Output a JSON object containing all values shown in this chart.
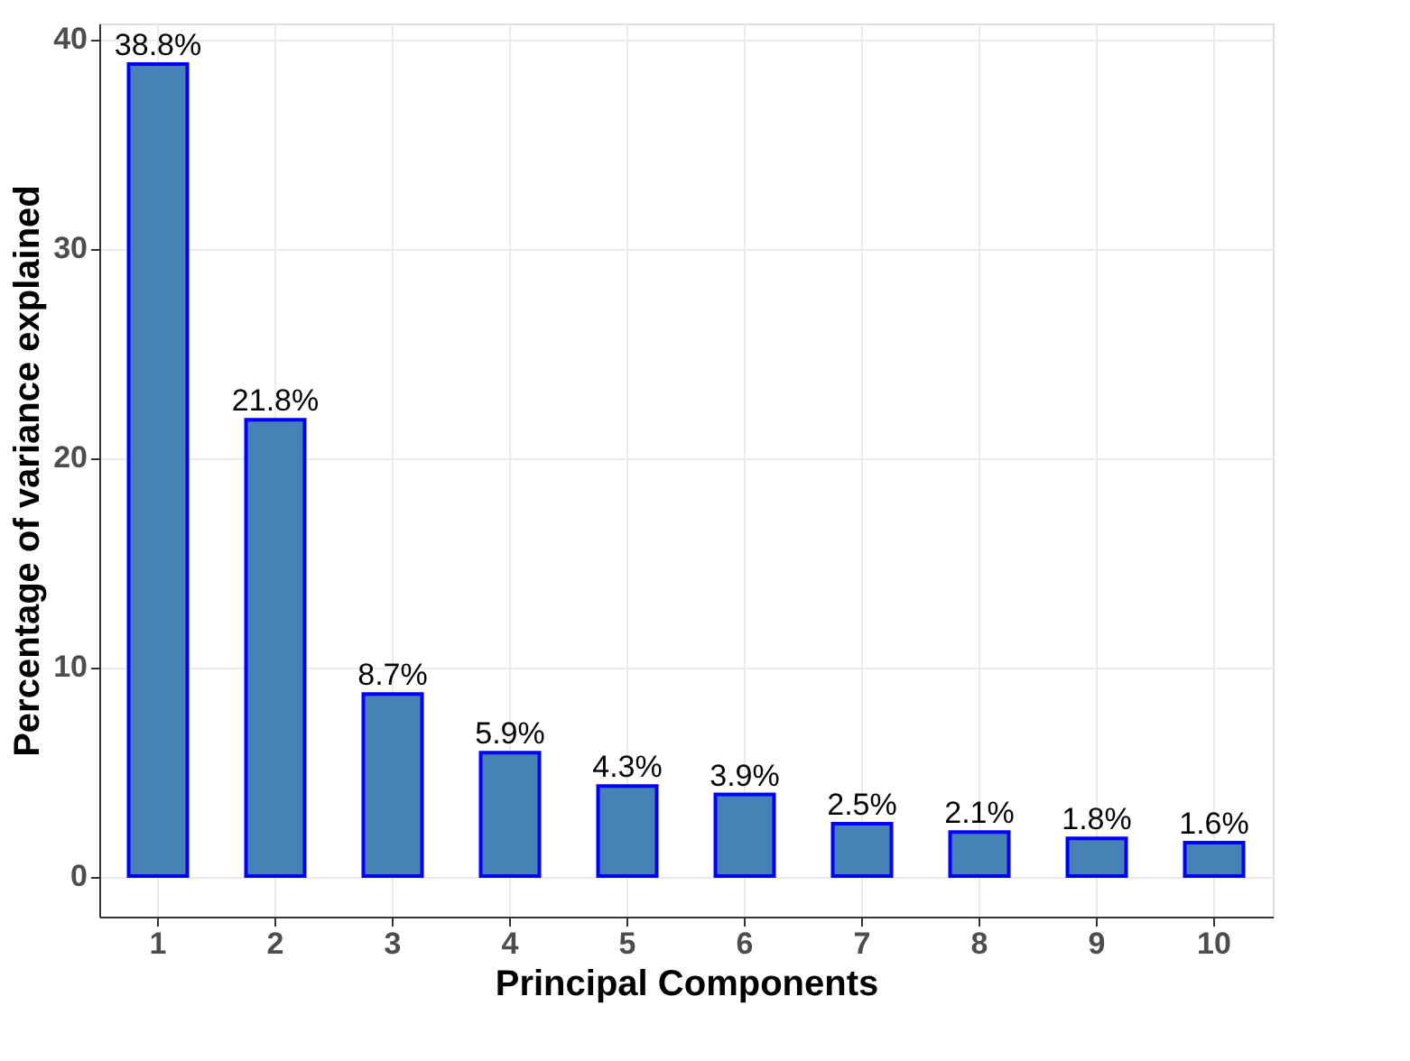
{
  "chart_data": {
    "type": "bar",
    "xlabel": "Principal Components",
    "ylabel": "Percentage of variance explained",
    "categories": [
      "1",
      "2",
      "3",
      "4",
      "5",
      "6",
      "7",
      "8",
      "9",
      "10"
    ],
    "values": [
      38.8,
      21.8,
      8.7,
      5.9,
      4.3,
      3.9,
      2.5,
      2.1,
      1.8,
      1.6
    ],
    "value_labels": [
      "38.8%",
      "21.8%",
      "8.7%",
      "5.9%",
      "4.3%",
      "3.9%",
      "2.5%",
      "2.1%",
      "1.8%",
      "1.6%"
    ],
    "color": "#4682b4",
    "ylim": [
      -1.94,
      40.74
    ],
    "yticks": [
      0,
      10,
      20,
      30,
      40
    ],
    "grid": true
  }
}
